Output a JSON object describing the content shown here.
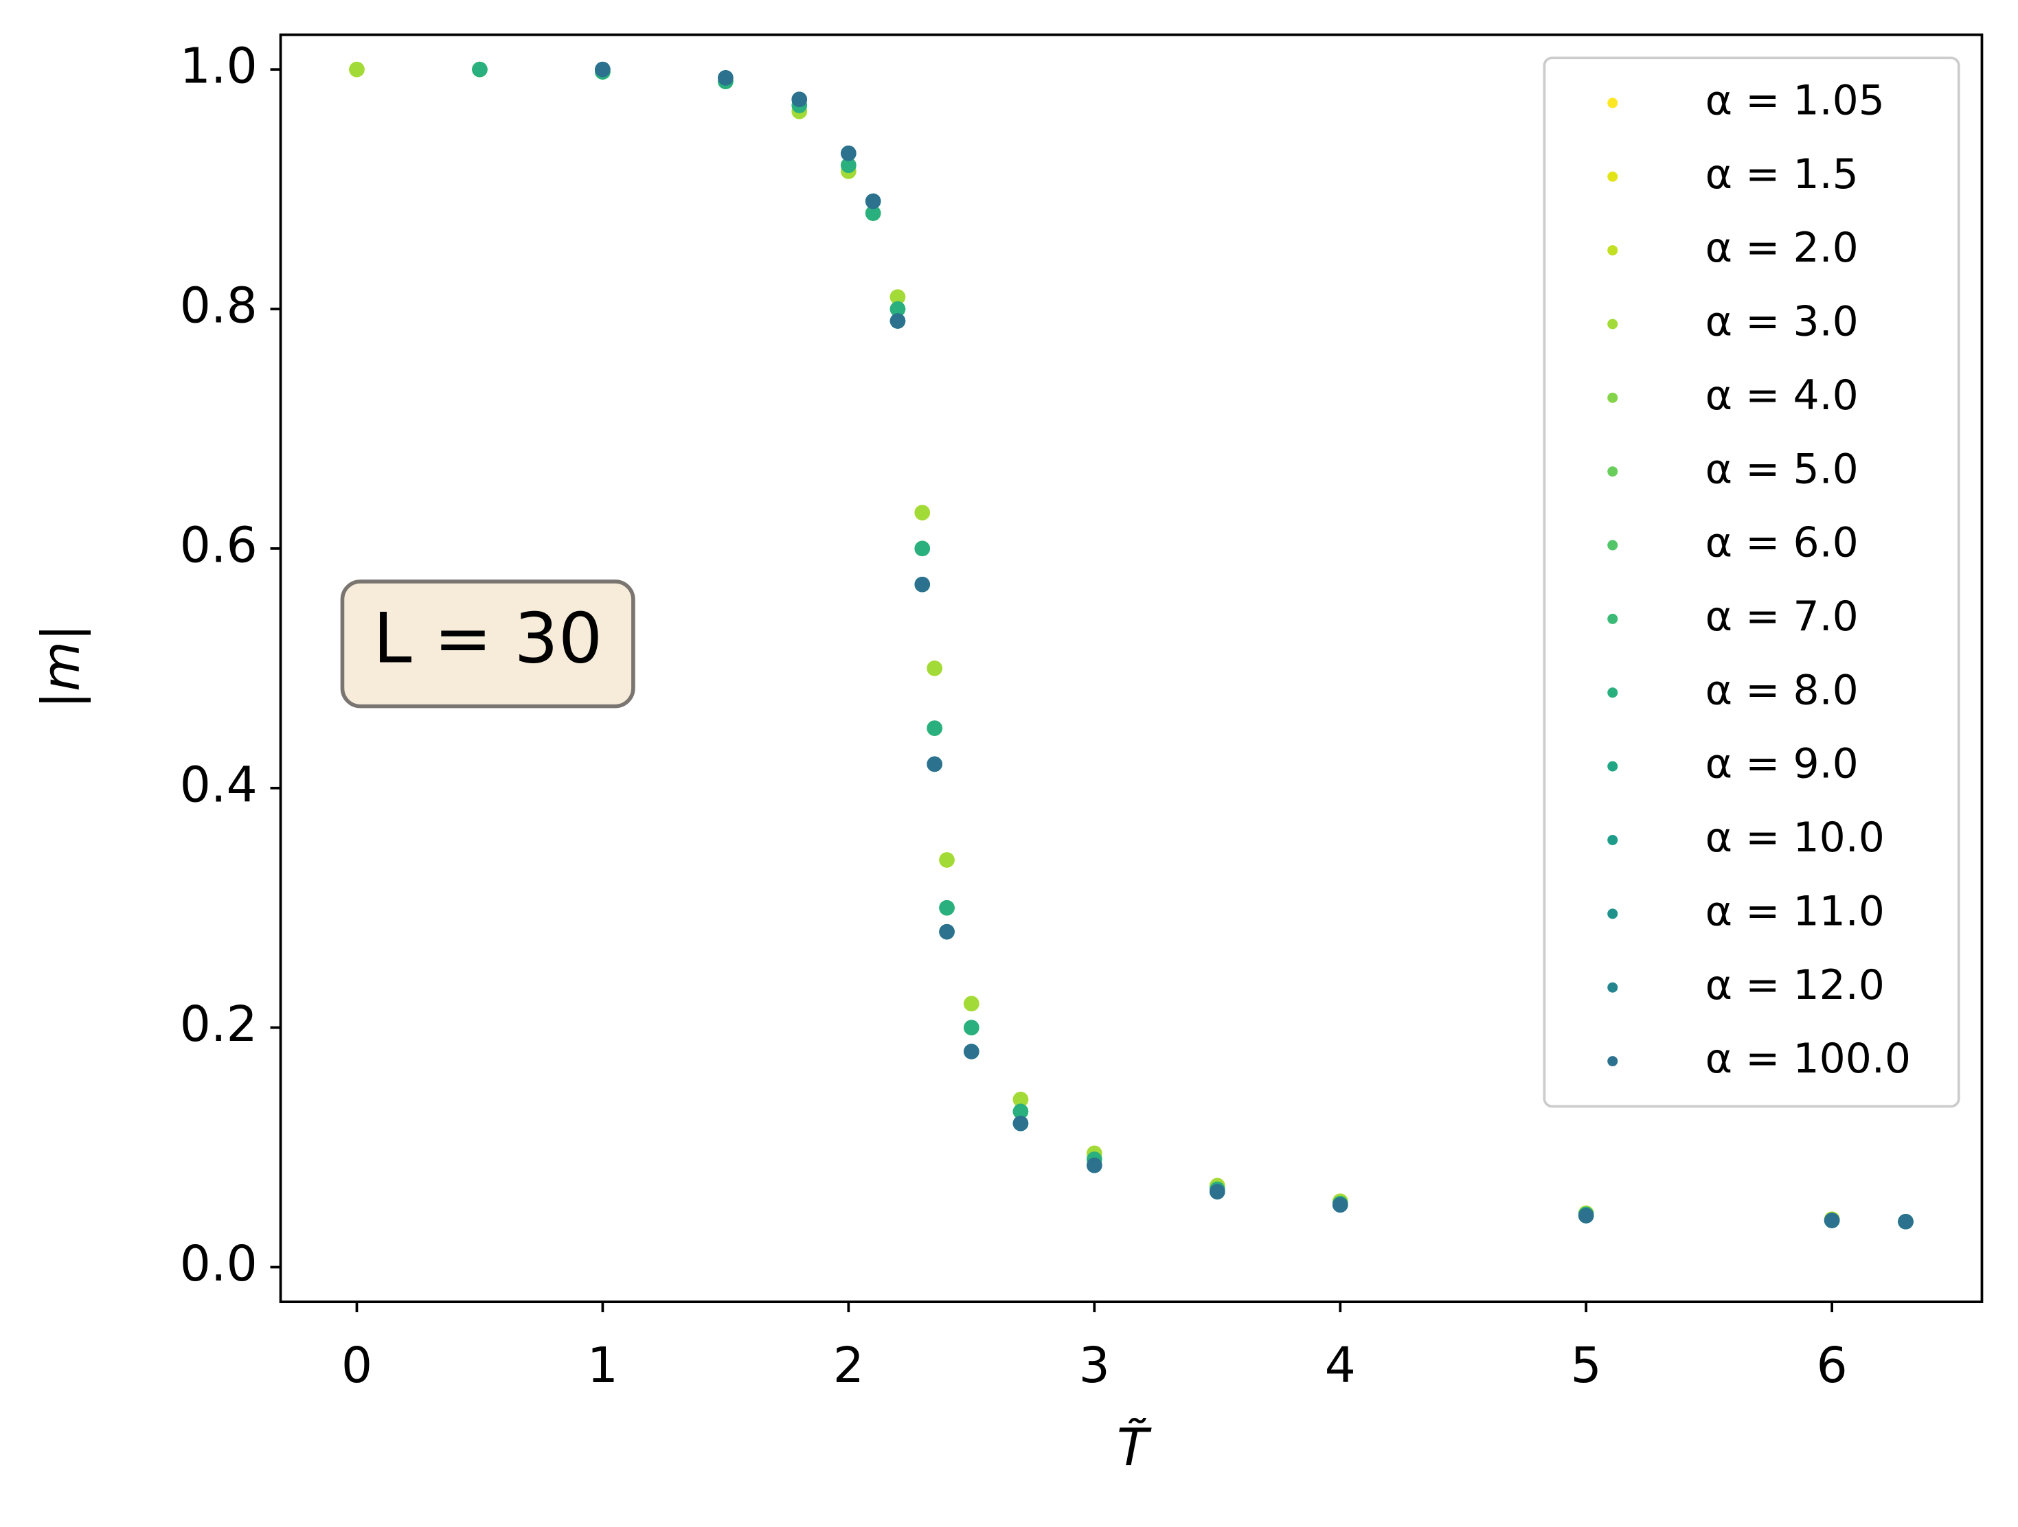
{
  "chart_data": {
    "type": "scatter",
    "xlabel": "T̃",
    "ylabel": "|m|",
    "annotation": "L = 30",
    "x": [
      0,
      0.5,
      1,
      1.5,
      1.8,
      2,
      2.1,
      2.2,
      2.3,
      2.35,
      2.4,
      2.5,
      2.7,
      3,
      3.5,
      4,
      5,
      6,
      6.3
    ],
    "xlim": [
      -0.31,
      6.61
    ],
    "ylim": [
      -0.029,
      1.029
    ],
    "xticks": [
      0,
      1,
      2,
      3,
      4,
      5,
      6
    ],
    "yticks": [
      {
        "value": 0,
        "label": "0.0"
      },
      0.2,
      0.4,
      0.6,
      0.8,
      {
        "value": 1,
        "label": "1.0"
      }
    ],
    "legend": "upper right",
    "series": [
      {
        "name": "α = 1.05",
        "color": "#fde725",
        "values": [
          1,
          1,
          0.998,
          0.99,
          0.965,
          0.915,
          0.88,
          0.81,
          0.63,
          0.5,
          0.34,
          0.22,
          0.14,
          0.095,
          0.068,
          0.055,
          0.045,
          0.04,
          0.038
        ]
      },
      {
        "name": "α = 1.5",
        "color": "#e2e418",
        "values": [
          1,
          1,
          0.998,
          0.99,
          0.965,
          0.915,
          0.88,
          0.81,
          0.63,
          0.5,
          0.34,
          0.22,
          0.14,
          0.095,
          0.068,
          0.055,
          0.045,
          0.04,
          0.038
        ]
      },
      {
        "name": "α = 2.0",
        "color": "#c2df23",
        "values": [
          1,
          1,
          0.998,
          0.99,
          0.965,
          0.915,
          0.88,
          0.81,
          0.63,
          0.5,
          0.34,
          0.22,
          0.14,
          0.095,
          0.068,
          0.055,
          0.045,
          0.04,
          0.038
        ]
      },
      {
        "name": "α = 3.0",
        "color": "#a2da37",
        "values": [
          1,
          1,
          0.998,
          0.99,
          0.965,
          0.915,
          0.88,
          0.81,
          0.63,
          0.5,
          0.34,
          0.22,
          0.14,
          0.095,
          0.068,
          0.055,
          0.045,
          0.04,
          0.038
        ]
      },
      {
        "name": "α = 4.0",
        "color": "#84d44b",
        "values": [
          null,
          1,
          0.998,
          0.99,
          0.97,
          0.92,
          0.88,
          0.8,
          0.6,
          0.45,
          0.3,
          0.2,
          0.13,
          0.09,
          0.065,
          0.053,
          0.044,
          0.039,
          0.038
        ]
      },
      {
        "name": "α = 5.0",
        "color": "#69cd5b",
        "values": [
          null,
          1,
          0.998,
          0.99,
          0.97,
          0.92,
          0.88,
          0.8,
          0.6,
          0.45,
          0.3,
          0.2,
          0.13,
          0.09,
          0.065,
          0.053,
          0.044,
          0.039,
          0.038
        ]
      },
      {
        "name": "α = 6.0",
        "color": "#52c569",
        "values": [
          null,
          1,
          0.998,
          0.99,
          0.97,
          0.92,
          0.88,
          0.8,
          0.6,
          0.45,
          0.3,
          0.2,
          0.13,
          0.09,
          0.065,
          0.053,
          0.044,
          0.039,
          0.038
        ]
      },
      {
        "name": "α = 7.0",
        "color": "#3aba76",
        "values": [
          null,
          1,
          0.998,
          0.99,
          0.97,
          0.92,
          0.88,
          0.8,
          0.6,
          0.45,
          0.3,
          0.2,
          0.13,
          0.09,
          0.065,
          0.053,
          0.044,
          0.039,
          0.038
        ]
      },
      {
        "name": "α = 8.0",
        "color": "#2ab07f",
        "values": [
          null,
          1,
          0.998,
          0.99,
          0.97,
          0.92,
          0.88,
          0.8,
          0.6,
          0.45,
          0.3,
          0.2,
          0.13,
          0.09,
          0.065,
          0.053,
          0.044,
          0.039,
          0.038
        ]
      },
      {
        "name": "α = 9.0",
        "color": "#21a685",
        "values": [
          null,
          null,
          1,
          0.993,
          0.975,
          0.93,
          0.89,
          0.79,
          0.57,
          0.42,
          0.28,
          0.18,
          0.12,
          0.085,
          0.063,
          0.052,
          0.043,
          0.039,
          0.038
        ]
      },
      {
        "name": "α = 10.0",
        "color": "#1e9c89",
        "values": [
          null,
          null,
          1,
          0.993,
          0.975,
          0.93,
          0.89,
          0.79,
          0.57,
          0.42,
          0.28,
          0.18,
          0.12,
          0.085,
          0.063,
          0.052,
          0.043,
          0.039,
          0.038
        ]
      },
      {
        "name": "α = 11.0",
        "color": "#21918c",
        "values": [
          null,
          null,
          1,
          0.993,
          0.975,
          0.93,
          0.89,
          0.79,
          0.57,
          0.42,
          0.28,
          0.18,
          0.12,
          0.085,
          0.063,
          0.052,
          0.043,
          0.039,
          0.038
        ]
      },
      {
        "name": "α = 12.0",
        "color": "#25858e",
        "values": [
          null,
          null,
          1,
          0.993,
          0.975,
          0.93,
          0.89,
          0.79,
          0.57,
          0.42,
          0.28,
          0.18,
          0.12,
          0.085,
          0.063,
          0.052,
          0.043,
          0.039,
          0.038
        ]
      },
      {
        "name": "α = 100.0",
        "color": "#2c718e",
        "values": [
          null,
          null,
          1,
          0.993,
          0.975,
          0.93,
          0.89,
          0.79,
          0.57,
          0.42,
          0.28,
          0.18,
          0.12,
          0.085,
          0.063,
          0.052,
          0.043,
          0.039,
          0.038
        ]
      }
    ]
  }
}
